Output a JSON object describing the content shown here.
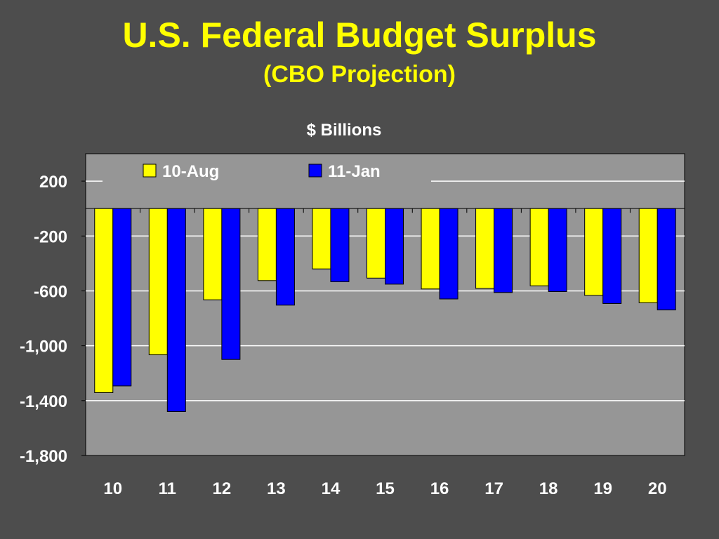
{
  "slide": {
    "title": "U.S. Federal Budget Surplus",
    "subtitle": "(CBO Projection)"
  },
  "colors": {
    "background": "#4d4d4d",
    "plot_area": "#969696",
    "title": "#ffff00",
    "series_1": "#ffff00",
    "series_2": "#0000ff"
  },
  "chart_data": {
    "type": "bar",
    "ylabel": "$ Billions",
    "categories": [
      "10",
      "11",
      "12",
      "13",
      "14",
      "15",
      "16",
      "17",
      "18",
      "19",
      "20"
    ],
    "series": [
      {
        "name": "10-Aug",
        "color": "#ffff00",
        "values": [
          -1342,
          -1066,
          -665,
          -525,
          -440,
          -507,
          -586,
          -582,
          -563,
          -633,
          -687
        ]
      },
      {
        "name": "11-Jan",
        "color": "#0000ff",
        "values": [
          -1293,
          -1480,
          -1100,
          -704,
          -533,
          -551,
          -659,
          -612,
          -605,
          -692,
          -739
        ]
      }
    ],
    "ylim": [
      -1800,
      400
    ],
    "yticks": [
      200,
      -200,
      -600,
      -1000,
      -1400,
      -1800
    ],
    "ytick_labels": [
      "200",
      "-200",
      "-600",
      "-1,000",
      "-1,400",
      "-1,800"
    ],
    "grid": true,
    "legend_position": "top"
  }
}
